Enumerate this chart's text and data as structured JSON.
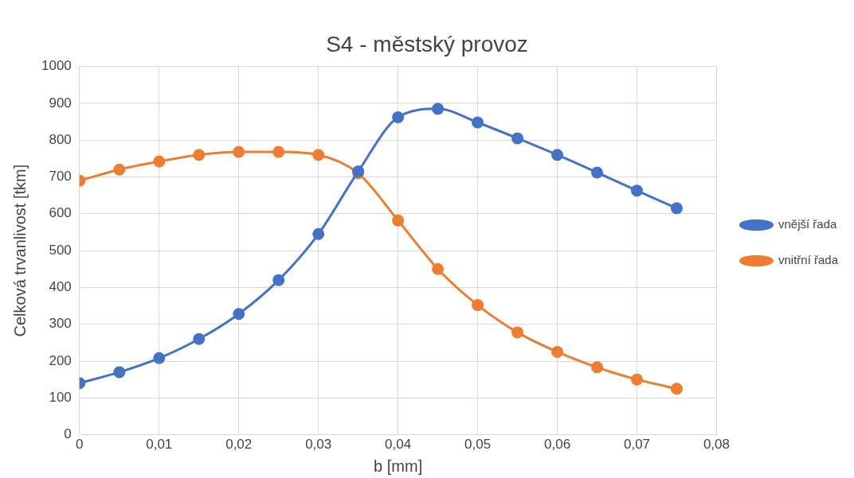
{
  "chart_data": {
    "type": "line",
    "title": "S4 - městský provoz",
    "xlabel": "b [mm]",
    "ylabel": "Celková trvanlivost [tkm]",
    "x": [
      0,
      0.005,
      0.01,
      0.015,
      0.02,
      0.025,
      0.03,
      0.035,
      0.04,
      0.045,
      0.05,
      0.055,
      0.06,
      0.065,
      0.07,
      0.075
    ],
    "series": [
      {
        "name": "vnější řada",
        "color": "#4472c4",
        "values": [
          140,
          170,
          208,
          260,
          328,
          420,
          545,
          715,
          862,
          885,
          848,
          805,
          760,
          712,
          663,
          615
        ]
      },
      {
        "name": "vnitřní řada",
        "color": "#ed7d31",
        "values": [
          690,
          720,
          742,
          760,
          768,
          768,
          760,
          710,
          582,
          450,
          352,
          278,
          225,
          183,
          150,
          125
        ]
      }
    ],
    "xlim": [
      0,
      0.08
    ],
    "xticks": [
      0,
      {
        "value": 0.01,
        "label": "0,01"
      },
      {
        "value": 0.02,
        "label": "0,02"
      },
      {
        "value": 0.03,
        "label": "0,03"
      },
      {
        "value": 0.04,
        "label": "0,04"
      },
      {
        "value": 0.05,
        "label": "0,05"
      },
      {
        "value": 0.06,
        "label": "0,06"
      },
      {
        "value": 0.07,
        "label": "0,07"
      },
      {
        "value": 0.08,
        "label": "0,08"
      }
    ],
    "ylim": [
      0,
      1000
    ],
    "yticks": [
      0,
      100,
      200,
      300,
      400,
      500,
      600,
      700,
      800,
      900,
      1000
    ],
    "grid": true,
    "legend": "right",
    "marker": "circle",
    "line_style": "solid"
  }
}
